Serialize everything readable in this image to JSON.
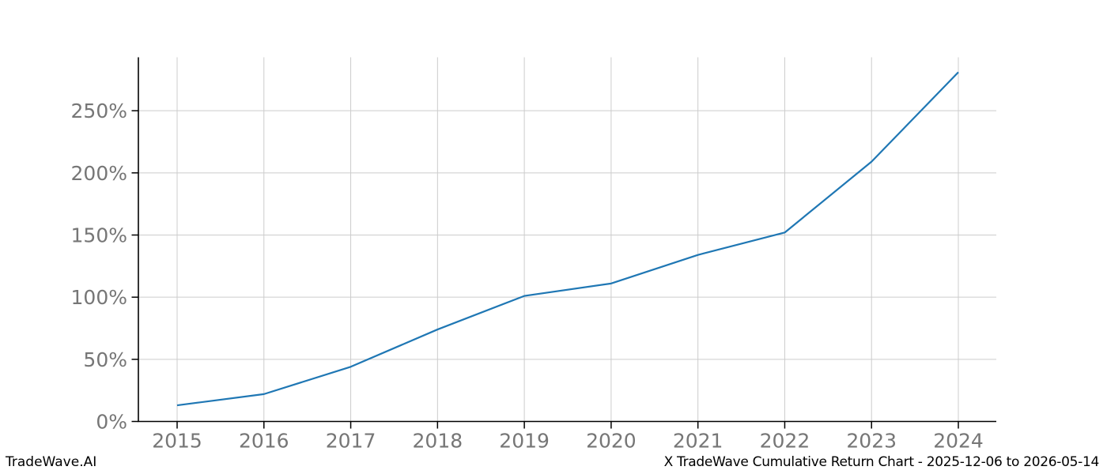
{
  "chart_data": {
    "type": "line",
    "title": "",
    "xlabel": "",
    "ylabel": "",
    "x": [
      2015,
      2016,
      2017,
      2018,
      2019,
      2020,
      2021,
      2022,
      2023,
      2024
    ],
    "x_tick_labels": [
      "2015",
      "2016",
      "2017",
      "2018",
      "2019",
      "2020",
      "2021",
      "2022",
      "2023",
      "2024"
    ],
    "series": [
      {
        "name": "cumulative-return",
        "values": [
          13,
          22,
          44,
          74,
          101,
          111,
          134,
          152,
          209,
          281
        ]
      }
    ],
    "y_tick_values": [
      0,
      50,
      100,
      150,
      200,
      250
    ],
    "y_tick_labels": [
      "0%",
      "50%",
      "100%",
      "150%",
      "200%",
      "250%"
    ],
    "ylim": [
      0,
      293
    ],
    "grid": true,
    "legend_position": "none",
    "colors": {
      "line": "#1f77b4",
      "grid": "#cccccc",
      "spine": "#000000",
      "tick": "#000000",
      "tick_label": "#767676"
    }
  },
  "footer": {
    "left": "TradeWave.AI",
    "right": "X TradeWave Cumulative Return Chart - 2025-12-06 to 2026-05-14"
  }
}
